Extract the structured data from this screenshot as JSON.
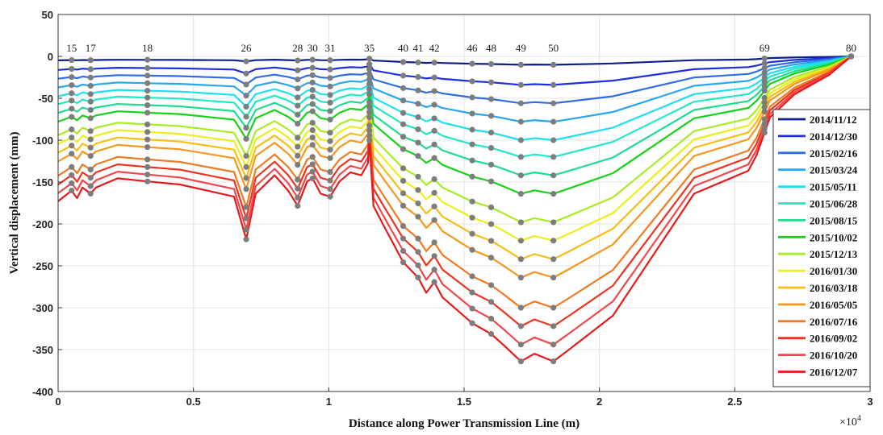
{
  "chart_data": {
    "type": "line",
    "xlabel": "Distance along Power Transmission Line (m)",
    "ylabel": "Vertical displacement (mm)",
    "x_multiplier_label": "×10",
    "x_multiplier_exponent": "4",
    "xlim": [
      0,
      30000
    ],
    "ylim": [
      -400,
      50
    ],
    "x_ticks": [
      0,
      5000,
      10000,
      15000,
      20000,
      25000,
      30000
    ],
    "x_tick_labels": [
      "0",
      "0.5",
      "1",
      "1.5",
      "2",
      "2.5",
      "3"
    ],
    "y_ticks": [
      50,
      0,
      -50,
      -100,
      -150,
      -200,
      -250,
      -300,
      -350,
      -400
    ],
    "grid": true,
    "legend_position": "right",
    "towers": [
      {
        "label": "15",
        "x": 500
      },
      {
        "label": "17",
        "x": 1200
      },
      {
        "label": "18",
        "x": 3300
      },
      {
        "label": "26",
        "x": 6950
      },
      {
        "label": "28",
        "x": 8850
      },
      {
        "label": "30",
        "x": 9400
      },
      {
        "label": "31",
        "x": 10050
      },
      {
        "label": "35",
        "x": 11500
      },
      {
        "label": "40",
        "x": 12750
      },
      {
        "label": "41",
        "x": 13300
      },
      {
        "label": "42",
        "x": 13900
      },
      {
        "label": "46",
        "x": 15300
      },
      {
        "label": "48",
        "x": 16000
      },
      {
        "label": "49",
        "x": 17100
      },
      {
        "label": "50",
        "x": 18300
      },
      {
        "label": "69",
        "x": 26100
      },
      {
        "label": "80",
        "x": 29300
      }
    ],
    "shape_x": [
      0,
      500,
      700,
      900,
      1200,
      1400,
      2200,
      3300,
      4500,
      6500,
      6950,
      7300,
      8000,
      8500,
      8850,
      9200,
      9400,
      9700,
      10050,
      10400,
      10800,
      11200,
      11450,
      11500,
      11650,
      12000,
      12750,
      13300,
      13600,
      13900,
      14200,
      15300,
      16000,
      16500,
      17100,
      17600,
      18300,
      18900,
      20500,
      23500,
      25500,
      25800,
      26000,
      26100,
      26300,
      27200,
      28500,
      29300
    ],
    "shape": [
      0.95,
      0.88,
      0.93,
      0.86,
      0.9,
      0.86,
      0.8,
      0.82,
      0.84,
      0.92,
      1.2,
      0.9,
      0.78,
      0.88,
      0.98,
      0.82,
      0.8,
      0.9,
      0.92,
      0.82,
      0.76,
      0.78,
      0.7,
      0.55,
      0.98,
      1.1,
      1.35,
      1.45,
      1.55,
      1.48,
      1.58,
      1.75,
      1.82,
      1.9,
      2.0,
      1.95,
      2.0,
      1.92,
      1.7,
      0.9,
      0.75,
      0.65,
      0.55,
      0.5,
      0.4,
      0.25,
      0.12,
      0.0
    ],
    "series": [
      {
        "name": "2014/11/12",
        "color": "#0d1f8c",
        "scale": 5
      },
      {
        "name": "2014/12/30",
        "color": "#1f2fe0",
        "scale": 17
      },
      {
        "name": "2015/02/16",
        "color": "#2d6de6",
        "scale": 28
      },
      {
        "name": "2015/03/24",
        "color": "#28a6ee",
        "scale": 39
      },
      {
        "name": "2015/05/11",
        "color": "#1ee0f0",
        "scale": 50
      },
      {
        "name": "2015/06/28",
        "color": "#22e8c6",
        "scale": 60
      },
      {
        "name": "2015/08/15",
        "color": "#1fdc92",
        "scale": 71
      },
      {
        "name": "2015/10/02",
        "color": "#18d21a",
        "scale": 82
      },
      {
        "name": "2015/12/13",
        "color": "#a7ec24",
        "scale": 99
      },
      {
        "name": "2016/01/30",
        "color": "#ecee1e",
        "scale": 110
      },
      {
        "name": "2016/03/18",
        "color": "#f8be14",
        "scale": 121
      },
      {
        "name": "2016/05/05",
        "color": "#f6981e",
        "scale": 132
      },
      {
        "name": "2016/07/16",
        "color": "#ee7a22",
        "scale": 150
      },
      {
        "name": "2016/09/02",
        "color": "#ee3320",
        "scale": 161
      },
      {
        "name": "2016/10/20",
        "color": "#f2474a",
        "scale": 172
      },
      {
        "name": "2016/12/07",
        "color": "#e51a1a",
        "scale": 182
      }
    ],
    "marker_color": "#7d7d7d"
  }
}
